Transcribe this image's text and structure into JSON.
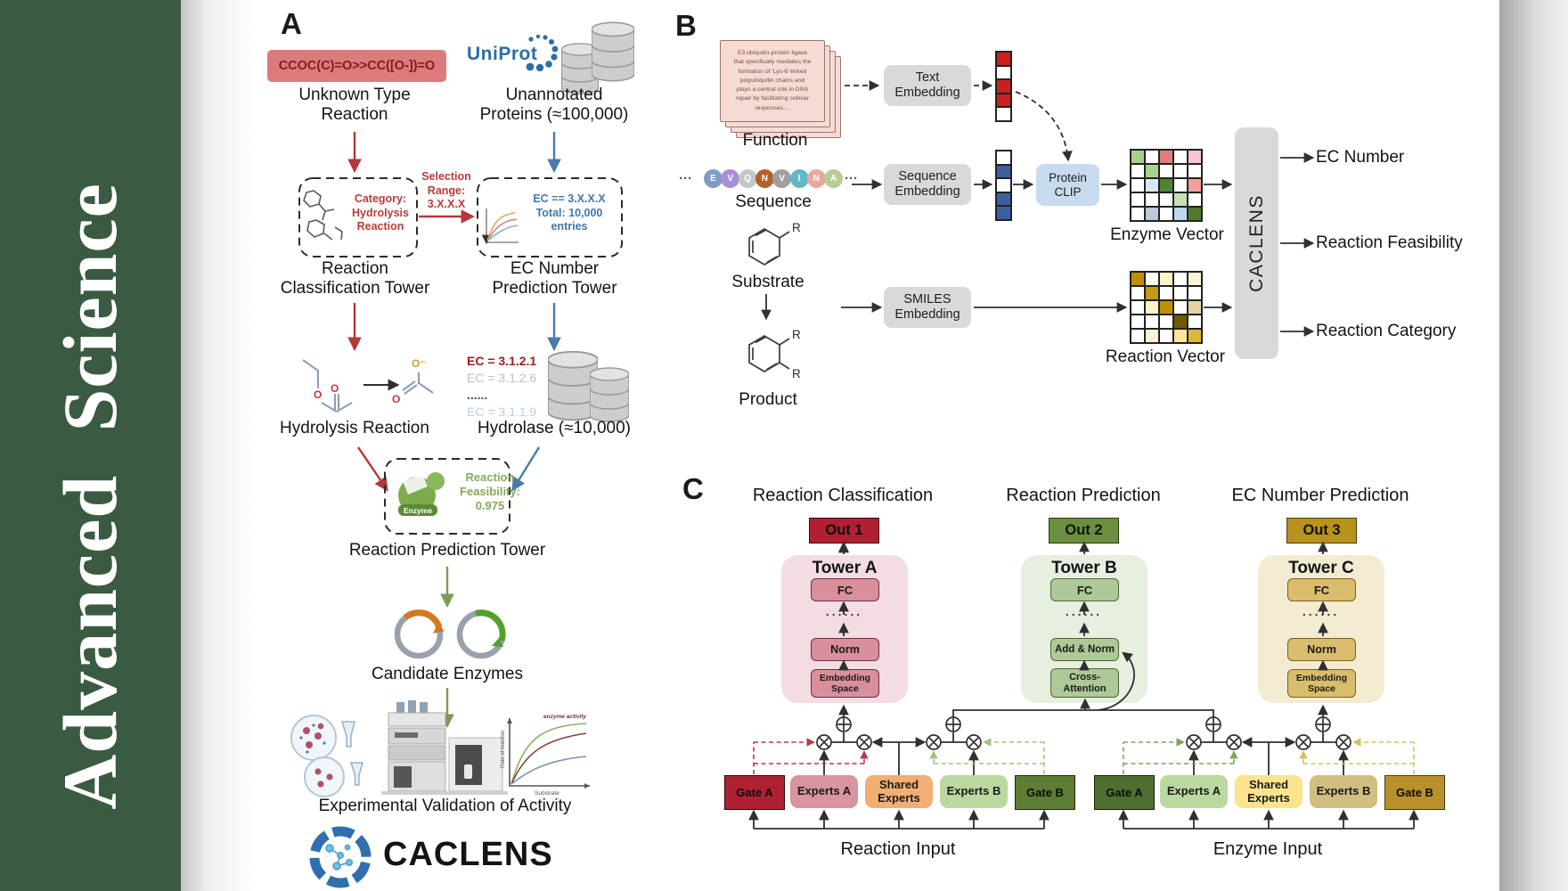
{
  "journal": {
    "name": "Advanced Science"
  },
  "panelA": {
    "label": "A",
    "smiles": "CCOC(C)=O>>CC([O-])=O",
    "uniprot": "UniProt",
    "unknown_reaction": "Unknown Type\nReaction",
    "unannotated": "Unannotated\nProteins (≈100,000)",
    "selection": "Selection\nRange:\n3.X.X.X",
    "category_box": "Category:\nHydrolysis\nReaction",
    "ec_box": "EC == 3.X.X.X\nTotal: 10,000\nentries",
    "classification_tower": "Reaction\nClassification Tower",
    "ec_tower": "EC Number\nPrediction Tower",
    "hydrolysis": "Hydrolysis Reaction",
    "ec_list": [
      {
        "text": "EC = 3.1.2.1",
        "color": "#9c1c1c",
        "bold": true
      },
      {
        "text": "EC = 3.1.2.6",
        "color": "#bfbfbf",
        "bold": false
      },
      {
        "text": "......",
        "color": "#4a4a4a",
        "bold": true
      },
      {
        "text": "EC = 3.1.1.9",
        "color": "#b9d0e4",
        "bold": false
      }
    ],
    "hydrolase": "Hydrolase (≈10,000)",
    "enzyme_badge": "Enzyme",
    "feasibility": "Reaction\nFeasibility:\n0.975",
    "prediction_tower": "Reaction Prediction Tower",
    "candidate": "Candidate Enzymes",
    "validation": "Experimental Validation of Activity",
    "logo_text": "CACLENS",
    "oxygen1": "O",
    "oxygen2": "O",
    "oxygen3": "O⁻",
    "oxygen4": "O",
    "chart": {
      "ylabel": "Rate of reaction",
      "xlabel": "Substrate",
      "legend": "enzyme activity"
    }
  },
  "panelB": {
    "label": "B",
    "function_card_lines": [
      "E3 ubiquitin-protein ligase",
      "that specifically mediates the",
      "formation of 'Lys-6'-linked",
      "polyubiquitin chains and",
      "plays a central role in DNA",
      "repair by facilitating cellular",
      "responses...."
    ],
    "function": "Function",
    "ellipsis": "···",
    "sequence": [
      {
        "l": "E",
        "c": "#8099c8"
      },
      {
        "l": "V",
        "c": "#a98fd6"
      },
      {
        "l": "Q",
        "c": "#c6c6c6"
      },
      {
        "l": "N",
        "c": "#b4602a"
      },
      {
        "l": "V",
        "c": "#9f9f9f"
      },
      {
        "l": "I",
        "c": "#63b8c8"
      },
      {
        "l": "N",
        "c": "#eaa79e"
      },
      {
        "l": "A",
        "c": "#b9cd90"
      }
    ],
    "sequence_label": "Sequence",
    "substrate": "Substrate",
    "product": "Product",
    "r_label": "R",
    "text_embedding": "Text\nEmbedding",
    "sequence_embedding": "Sequence\nEmbedding",
    "smiles_embedding": "SMILES\nEmbedding",
    "protein_clip": "Protein\nCLIP",
    "text_vector": [
      "#cc1f1f",
      "#ffffff",
      "#cc1f1f",
      "#cc1f1f",
      "#ffffff"
    ],
    "seq_vector": [
      "#ffffff",
      "#3b5fa0",
      "#ffffff",
      "#3b5fa0",
      "#3b5fa0"
    ],
    "enzyme_vector": {
      "label": "Enzyme Vector",
      "cells": [
        [
          "#a9d18e",
          "#ffffff",
          "#e57c7c",
          "#ffffff",
          "#f5c6cd"
        ],
        [
          "#ffffff",
          "#a9d18e",
          "#ffffff",
          "#ffffff",
          "#ffffff"
        ],
        [
          "#ffffff",
          "#d9e5f3",
          "#538135",
          "#ffffff",
          "#f0a0a0"
        ],
        [
          "#ffffff",
          "#ffffff",
          "#ffffff",
          "#c6e0b4",
          "#ffffff"
        ],
        [
          "#ffffff",
          "#b9c9da",
          "#ffffff",
          "#bdd7ee",
          "#4f7a2f"
        ]
      ]
    },
    "reaction_vector": {
      "label": "Reaction Vector",
      "cells": [
        [
          "#bf9000",
          "#ffffff",
          "#fff2cc",
          "#ffffff",
          "#fdf4d7"
        ],
        [
          "#ffffff",
          "#c49b10",
          "#ffffff",
          "#ffffff",
          "#ffffff"
        ],
        [
          "#ffffff",
          "#fff2cc",
          "#bf9000",
          "#ffffff",
          "#e3d5a8"
        ],
        [
          "#ffffff",
          "#ffffff",
          "#ffffff",
          "#6f5a00",
          "#ffffff"
        ],
        [
          "#ffffff",
          "#fdf4d7",
          "#ffffff",
          "#ffe599",
          "#d8b83c"
        ]
      ]
    },
    "caclens": "CACLENS",
    "outputs": [
      "EC Number",
      "Reaction Feasibility",
      "Reaction Category"
    ]
  },
  "panelC": {
    "label": "C",
    "headings": [
      "Reaction Classification",
      "Reaction Prediction",
      "EC Number Prediction"
    ],
    "outs": [
      "Out 1",
      "Out 2",
      "Out 3"
    ],
    "towerA": {
      "title": "Tower A",
      "fc": "FC",
      "dots": "......",
      "norm": "Norm",
      "embedding": "Embedding\nSpace"
    },
    "towerB": {
      "title": "Tower B",
      "fc": "FC",
      "dots": "......",
      "addnorm": "Add & Norm",
      "cross": "Cross-\nAttention"
    },
    "towerC": {
      "title": "Tower C",
      "fc": "FC",
      "dots": "......",
      "norm": "Norm",
      "embedding": "Embedding\nSpace"
    },
    "reaction_group": {
      "gate_a": "Gate A",
      "experts_a": "Experts A",
      "shared": "Shared\nExperts",
      "experts_b": "Experts B",
      "gate_b": "Gate B",
      "input": "Reaction Input"
    },
    "enzyme_group": {
      "gate_a": "Gate A",
      "experts_a": "Experts A",
      "shared": "Shared\nExperts",
      "experts_b": "Experts B",
      "gate_b": "Gate B",
      "input": "Enzyme Input"
    }
  }
}
